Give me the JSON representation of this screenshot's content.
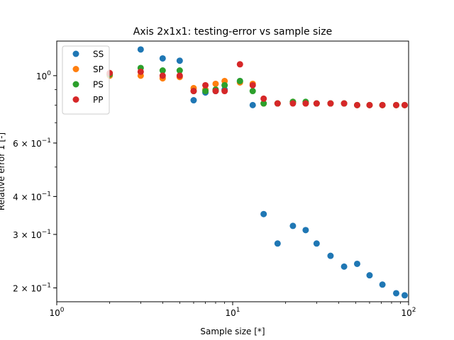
{
  "chart_data": {
    "type": "scatter",
    "title": "Axis 2x1x1: testing-error vs sample size",
    "xlabel": "Sample size [*]",
    "ylabel": "Relative error  1 [-]",
    "xscale": "log",
    "yscale": "log",
    "xlim": [
      1,
      100
    ],
    "ylim": [
      0.18,
      1.3
    ],
    "x_ticks": [
      {
        "value": 1,
        "base": "10",
        "exp": "0"
      },
      {
        "value": 10,
        "base": "10",
        "exp": "1"
      },
      {
        "value": 100,
        "base": "10",
        "exp": "2"
      }
    ],
    "y_ticks": [
      {
        "value": 1.0,
        "label": "10",
        "exp": "0",
        "coef": ""
      },
      {
        "value": 0.6,
        "label": "10",
        "exp": "−1",
        "coef": "6 × "
      },
      {
        "value": 0.4,
        "label": "10",
        "exp": "−1",
        "coef": "4 × "
      },
      {
        "value": 0.3,
        "label": "10",
        "exp": "−1",
        "coef": "3 × "
      },
      {
        "value": 0.2,
        "label": "10",
        "exp": "−1",
        "coef": "2 × "
      }
    ],
    "legend_position": "top-left",
    "series": [
      {
        "name": "SS",
        "color": "#1f77b4",
        "points": [
          [
            2,
            1.01
          ],
          [
            3,
            1.22
          ],
          [
            4,
            1.14
          ],
          [
            5,
            1.12
          ],
          [
            6,
            0.83
          ],
          [
            7,
            0.88
          ],
          [
            8,
            0.89
          ],
          [
            9,
            0.9
          ],
          [
            11,
            0.96
          ],
          [
            13,
            0.8
          ],
          [
            15,
            0.35
          ],
          [
            18,
            0.28
          ],
          [
            22,
            0.32
          ],
          [
            26,
            0.31
          ],
          [
            30,
            0.28
          ],
          [
            36,
            0.255
          ],
          [
            43,
            0.235
          ],
          [
            51,
            0.24
          ],
          [
            60,
            0.22
          ],
          [
            71,
            0.205
          ],
          [
            85,
            0.192
          ],
          [
            95,
            0.189
          ]
        ]
      },
      {
        "name": "SP",
        "color": "#ff7f0e",
        "points": [
          [
            2,
            1.0
          ],
          [
            3,
            1.0
          ],
          [
            4,
            0.98
          ],
          [
            5,
            0.99
          ],
          [
            6,
            0.91
          ],
          [
            7,
            0.9
          ],
          [
            8,
            0.94
          ],
          [
            9,
            0.96
          ],
          [
            11,
            0.95
          ],
          [
            13,
            0.94
          ],
          [
            15,
            0.81
          ],
          [
            18,
            0.81
          ],
          [
            22,
            0.82
          ],
          [
            26,
            0.81
          ],
          [
            30,
            0.81
          ],
          [
            36,
            0.81
          ],
          [
            43,
            0.81
          ],
          [
            51,
            0.8
          ],
          [
            60,
            0.8
          ],
          [
            71,
            0.8
          ],
          [
            85,
            0.8
          ],
          [
            95,
            0.8
          ]
        ]
      },
      {
        "name": "PS",
        "color": "#2ca02c",
        "points": [
          [
            2,
            1.01
          ],
          [
            3,
            1.06
          ],
          [
            4,
            1.04
          ],
          [
            5,
            1.04
          ],
          [
            6,
            0.89
          ],
          [
            7,
            0.89
          ],
          [
            8,
            0.9
          ],
          [
            9,
            0.93
          ],
          [
            11,
            0.96
          ],
          [
            13,
            0.89
          ],
          [
            15,
            0.81
          ],
          [
            18,
            0.81
          ],
          [
            22,
            0.82
          ],
          [
            26,
            0.82
          ],
          [
            30,
            0.81
          ],
          [
            36,
            0.81
          ],
          [
            43,
            0.81
          ],
          [
            51,
            0.8
          ],
          [
            60,
            0.8
          ],
          [
            71,
            0.8
          ],
          [
            85,
            0.8
          ],
          [
            95,
            0.8
          ]
        ]
      },
      {
        "name": "PP",
        "color": "#d62728",
        "points": [
          [
            2,
            1.02
          ],
          [
            3,
            1.03
          ],
          [
            4,
            1.0
          ],
          [
            5,
            1.0
          ],
          [
            6,
            0.89
          ],
          [
            7,
            0.93
          ],
          [
            8,
            0.89
          ],
          [
            9,
            0.89
          ],
          [
            11,
            1.09
          ],
          [
            13,
            0.93
          ],
          [
            15,
            0.84
          ],
          [
            18,
            0.81
          ],
          [
            22,
            0.81
          ],
          [
            26,
            0.81
          ],
          [
            30,
            0.81
          ],
          [
            36,
            0.81
          ],
          [
            43,
            0.81
          ],
          [
            51,
            0.8
          ],
          [
            60,
            0.8
          ],
          [
            71,
            0.8
          ],
          [
            85,
            0.8
          ],
          [
            95,
            0.8
          ]
        ]
      }
    ]
  }
}
